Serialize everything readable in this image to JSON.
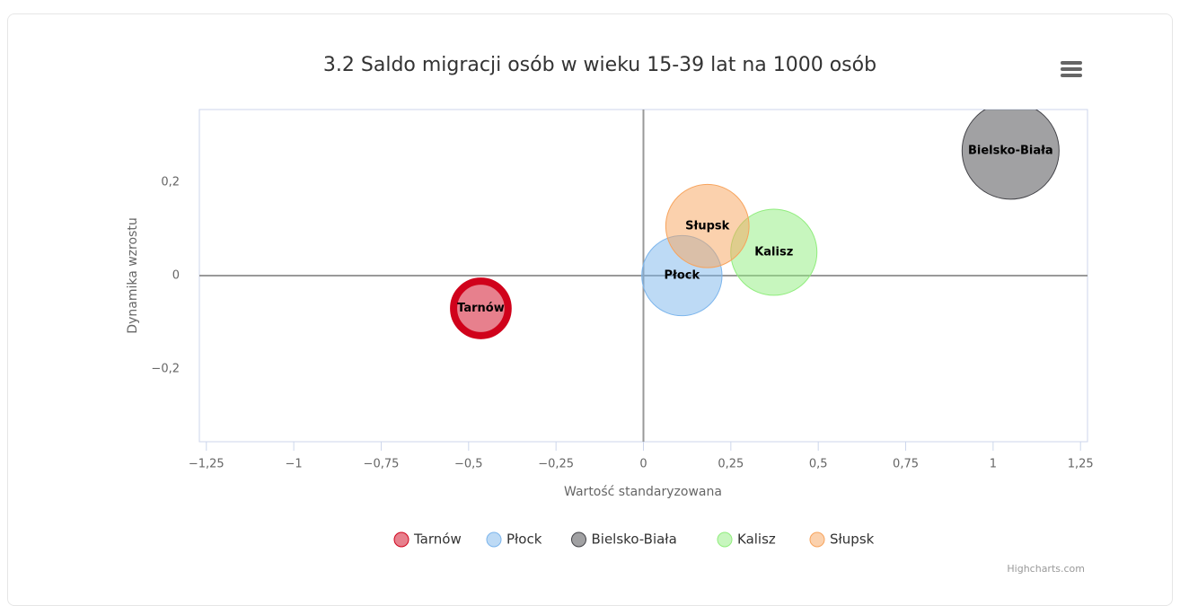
{
  "chart_data": {
    "type": "bubble",
    "title": "3.2 Saldo migracji osób w wieku 15-39 lat na 1000 osób",
    "x_label": "Wartość standaryzowana",
    "y_label": "Dynamika wzrostu",
    "credits": "Highcharts.com",
    "xlim": [
      -1.27,
      1.27
    ],
    "ylim": [
      -0.355,
      0.355
    ],
    "xticks": [
      {
        "value": -1.25,
        "label": "−1,25"
      },
      {
        "value": -1,
        "label": "−1"
      },
      {
        "value": -0.75,
        "label": "−0,75"
      },
      {
        "value": -0.5,
        "label": "−0,5"
      },
      {
        "value": -0.25,
        "label": "−0,25"
      },
      0,
      {
        "value": 0.25,
        "label": "0,25"
      },
      {
        "value": 0.5,
        "label": "0,5"
      },
      {
        "value": 0.75,
        "label": "0,75"
      },
      1,
      {
        "value": 1.25,
        "label": "1,25"
      }
    ],
    "yticks": [
      {
        "value": -0.2,
        "label": "−0,2"
      },
      0,
      {
        "value": 0.2,
        "label": "0,2"
      }
    ],
    "plot_lines": [
      {
        "axis": "x",
        "value": 0
      },
      {
        "axis": "y",
        "value": 0
      }
    ],
    "grid": false,
    "legend": "bottom",
    "series": [
      {
        "name": "Tarnów",
        "color": "#d0021b",
        "highlight": true,
        "x": [
          -0.465
        ],
        "values": [
          -0.07
        ],
        "sizes": [
          3
        ]
      },
      {
        "name": "Płock",
        "color": "#7cb5ec",
        "x": [
          0.11
        ],
        "values": [
          0
        ],
        "sizes": [
          6.5
        ]
      },
      {
        "name": "Bielsko-Biała",
        "color": "#434348",
        "x": [
          1.05
        ],
        "values": [
          0.267
        ],
        "sizes": [
          9.5
        ]
      },
      {
        "name": "Kalisz",
        "color": "#90ed7d",
        "x": [
          0.373
        ],
        "values": [
          0.05
        ],
        "sizes": [
          7.5
        ]
      },
      {
        "name": "Słupsk",
        "color": "#f7a35c",
        "x": [
          0.183
        ],
        "values": [
          0.106
        ],
        "sizes": [
          7
        ]
      }
    ]
  }
}
